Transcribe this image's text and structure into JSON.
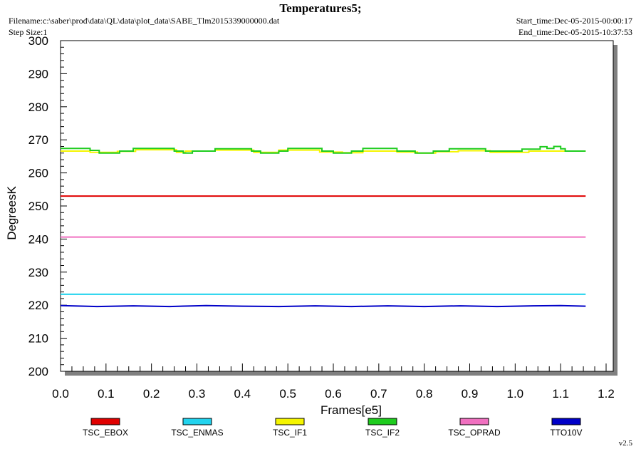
{
  "header": {
    "title": "Temperatures5;",
    "filename": "Filename:c:\\saber\\prod\\data\\QL\\data\\plot_data\\SABE_Tlm2015339000000.dat",
    "step_size": "Step Size:1",
    "start_time": "Start_time:Dec-05-2015-00:00:17",
    "end_time": "End_time:Dec-05-2015-10:37:53"
  },
  "version": "v2.5",
  "chart_data": {
    "type": "line",
    "xlabel": "Frames[e5]",
    "ylabel": "DegreesK",
    "xlim": [
      0.0,
      1.2
    ],
    "ylim": [
      200,
      300
    ],
    "xticks": [
      "0.0",
      "0.1",
      "0.2",
      "0.3",
      "0.4",
      "0.5",
      "0.6",
      "0.7",
      "0.8",
      "0.9",
      "1.0",
      "1.1",
      "1.2"
    ],
    "yticks": [
      "200",
      "210",
      "220",
      "230",
      "240",
      "250",
      "260",
      "270",
      "280",
      "290",
      "300"
    ],
    "grid": false,
    "legend_position": "bottom",
    "series": [
      {
        "name": "TSC_EBOX",
        "color": "#e00000",
        "points": [
          [
            0.0,
            253.0
          ],
          [
            1.155,
            253.0
          ]
        ]
      },
      {
        "name": "TSC_ENMAS",
        "color": "#22d3ee",
        "points": [
          [
            0.0,
            223.3
          ],
          [
            1.155,
            223.3
          ]
        ]
      },
      {
        "name": "TSC_IF1",
        "color": "#f5f500",
        "points": [
          [
            0.0,
            266.6
          ],
          [
            0.065,
            266.6
          ],
          [
            0.065,
            266.2
          ],
          [
            0.125,
            266.2
          ],
          [
            0.125,
            266.5
          ],
          [
            0.165,
            266.5
          ],
          [
            0.165,
            267.0
          ],
          [
            0.255,
            267.0
          ],
          [
            0.255,
            266.2
          ],
          [
            0.275,
            266.2
          ],
          [
            0.275,
            266.6
          ],
          [
            0.34,
            266.6
          ],
          [
            0.34,
            266.9
          ],
          [
            0.425,
            266.9
          ],
          [
            0.425,
            266.2
          ],
          [
            0.48,
            266.2
          ],
          [
            0.48,
            266.9
          ],
          [
            0.57,
            266.9
          ],
          [
            0.57,
            266.3
          ],
          [
            0.62,
            266.3
          ],
          [
            0.62,
            266.1
          ],
          [
            0.665,
            266.1
          ],
          [
            0.665,
            266.6
          ],
          [
            0.74,
            266.6
          ],
          [
            0.74,
            266.3
          ],
          [
            0.785,
            266.3
          ],
          [
            0.785,
            266.0
          ],
          [
            0.825,
            266.0
          ],
          [
            0.825,
            266.4
          ],
          [
            0.875,
            266.4
          ],
          [
            0.875,
            266.7
          ],
          [
            0.945,
            266.7
          ],
          [
            0.945,
            266.2
          ],
          [
            1.03,
            266.2
          ],
          [
            1.03,
            266.6
          ],
          [
            1.155,
            266.6
          ]
        ]
      },
      {
        "name": "TSC_IF2",
        "color": "#1ecc1e",
        "points": [
          [
            0.0,
            267.4
          ],
          [
            0.065,
            267.4
          ],
          [
            0.065,
            266.8
          ],
          [
            0.085,
            266.8
          ],
          [
            0.085,
            266.0
          ],
          [
            0.13,
            266.0
          ],
          [
            0.13,
            266.6
          ],
          [
            0.16,
            266.6
          ],
          [
            0.16,
            267.4
          ],
          [
            0.25,
            267.4
          ],
          [
            0.25,
            266.6
          ],
          [
            0.27,
            266.6
          ],
          [
            0.27,
            266.0
          ],
          [
            0.29,
            266.0
          ],
          [
            0.29,
            266.6
          ],
          [
            0.34,
            266.6
          ],
          [
            0.34,
            267.3
          ],
          [
            0.42,
            267.3
          ],
          [
            0.42,
            266.6
          ],
          [
            0.44,
            266.6
          ],
          [
            0.44,
            266.0
          ],
          [
            0.48,
            266.0
          ],
          [
            0.48,
            266.6
          ],
          [
            0.5,
            266.6
          ],
          [
            0.5,
            267.4
          ],
          [
            0.575,
            267.4
          ],
          [
            0.575,
            266.6
          ],
          [
            0.6,
            266.6
          ],
          [
            0.6,
            266.0
          ],
          [
            0.64,
            266.0
          ],
          [
            0.64,
            266.6
          ],
          [
            0.665,
            266.6
          ],
          [
            0.665,
            267.4
          ],
          [
            0.74,
            267.4
          ],
          [
            0.74,
            266.6
          ],
          [
            0.78,
            266.6
          ],
          [
            0.78,
            266.0
          ],
          [
            0.82,
            266.0
          ],
          [
            0.82,
            266.6
          ],
          [
            0.855,
            266.6
          ],
          [
            0.855,
            267.3
          ],
          [
            0.935,
            267.3
          ],
          [
            0.935,
            266.6
          ],
          [
            1.015,
            266.6
          ],
          [
            1.015,
            267.2
          ],
          [
            1.055,
            267.2
          ],
          [
            1.055,
            267.9
          ],
          [
            1.07,
            267.9
          ],
          [
            1.07,
            267.4
          ],
          [
            1.085,
            267.4
          ],
          [
            1.085,
            268.0
          ],
          [
            1.1,
            268.0
          ],
          [
            1.1,
            267.3
          ],
          [
            1.11,
            267.3
          ],
          [
            1.11,
            266.6
          ],
          [
            1.155,
            266.6
          ]
        ]
      },
      {
        "name": "TSC_OPRAD",
        "color": "#f070c0",
        "points": [
          [
            0.0,
            240.6
          ],
          [
            1.155,
            240.6
          ]
        ]
      },
      {
        "name": "TTO10V",
        "color": "#0000c8",
        "points": [
          [
            0.0,
            219.9
          ],
          [
            0.08,
            219.6
          ],
          [
            0.16,
            219.8
          ],
          [
            0.24,
            219.6
          ],
          [
            0.32,
            219.9
          ],
          [
            0.4,
            219.7
          ],
          [
            0.48,
            219.6
          ],
          [
            0.56,
            219.8
          ],
          [
            0.64,
            219.6
          ],
          [
            0.72,
            219.8
          ],
          [
            0.8,
            219.6
          ],
          [
            0.88,
            219.8
          ],
          [
            0.96,
            219.6
          ],
          [
            1.04,
            219.8
          ],
          [
            1.1,
            219.9
          ],
          [
            1.155,
            219.7
          ]
        ]
      }
    ]
  }
}
